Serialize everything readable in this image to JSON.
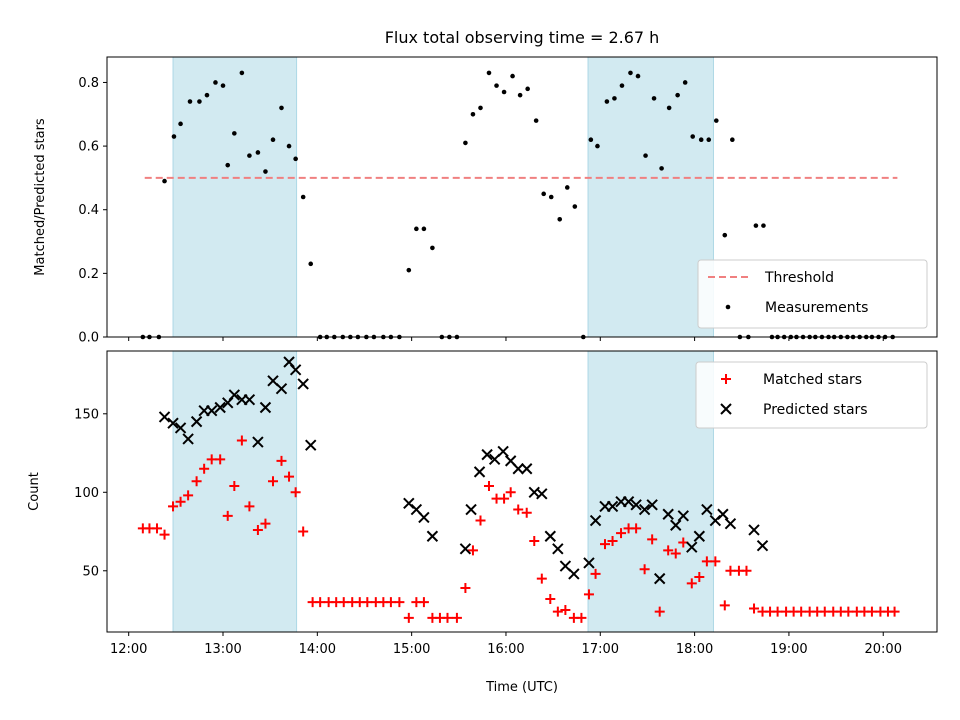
{
  "title": "Flux total observing time = 2.67 h",
  "xlabel": "Time (UTC)",
  "xticks": [
    "12:00",
    "13:00",
    "14:00",
    "15:00",
    "16:00",
    "17:00",
    "18:00",
    "19:00",
    "20:00"
  ],
  "colors": {
    "shade": "#add8e6",
    "threshold": "#f08080",
    "matched": "#ff0000",
    "predicted": "#000000",
    "measurement": "#000000"
  },
  "chart_data": [
    {
      "type": "scatter",
      "ylabel": "Matched/Predicted stars",
      "xlim": [
        11.77,
        20.57
      ],
      "ylim": [
        0,
        0.88
      ],
      "yticks": [
        0.0,
        0.2,
        0.4,
        0.6,
        0.8
      ],
      "shaded_regions": [
        [
          12.47,
          13.78
        ],
        [
          16.87,
          18.2
        ]
      ],
      "threshold": {
        "name": "Threshold",
        "value": 0.5,
        "x_range": [
          12.17,
          20.15
        ]
      },
      "legend_position": "lower-right",
      "series": [
        {
          "name": "Measurements",
          "points": [
            [
              12.15,
              0.0
            ],
            [
              12.22,
              0.0
            ],
            [
              12.32,
              0.0
            ],
            [
              12.38,
              0.49
            ],
            [
              12.48,
              0.63
            ],
            [
              12.55,
              0.67
            ],
            [
              12.65,
              0.74
            ],
            [
              12.75,
              0.74
            ],
            [
              12.83,
              0.76
            ],
            [
              12.92,
              0.8
            ],
            [
              13.0,
              0.79
            ],
            [
              13.05,
              0.54
            ],
            [
              13.12,
              0.64
            ],
            [
              13.2,
              0.83
            ],
            [
              13.28,
              0.57
            ],
            [
              13.37,
              0.58
            ],
            [
              13.45,
              0.52
            ],
            [
              13.53,
              0.62
            ],
            [
              13.62,
              0.72
            ],
            [
              13.7,
              0.6
            ],
            [
              13.77,
              0.56
            ],
            [
              13.85,
              0.44
            ],
            [
              13.93,
              0.23
            ],
            [
              14.03,
              0.0
            ],
            [
              14.1,
              0.0
            ],
            [
              14.18,
              0.0
            ],
            [
              14.27,
              0.0
            ],
            [
              14.35,
              0.0
            ],
            [
              14.43,
              0.0
            ],
            [
              14.52,
              0.0
            ],
            [
              14.6,
              0.0
            ],
            [
              14.7,
              0.0
            ],
            [
              14.78,
              0.0
            ],
            [
              14.87,
              0.0
            ],
            [
              14.97,
              0.21
            ],
            [
              15.05,
              0.34
            ],
            [
              15.13,
              0.34
            ],
            [
              15.22,
              0.28
            ],
            [
              15.32,
              0.0
            ],
            [
              15.4,
              0.0
            ],
            [
              15.48,
              0.0
            ],
            [
              15.57,
              0.61
            ],
            [
              15.65,
              0.7
            ],
            [
              15.73,
              0.72
            ],
            [
              15.82,
              0.83
            ],
            [
              15.9,
              0.79
            ],
            [
              15.98,
              0.77
            ],
            [
              16.07,
              0.82
            ],
            [
              16.15,
              0.76
            ],
            [
              16.23,
              0.78
            ],
            [
              16.32,
              0.68
            ],
            [
              16.4,
              0.45
            ],
            [
              16.48,
              0.44
            ],
            [
              16.57,
              0.37
            ],
            [
              16.65,
              0.47
            ],
            [
              16.73,
              0.41
            ],
            [
              16.82,
              0.0
            ],
            [
              16.9,
              0.62
            ],
            [
              16.97,
              0.6
            ],
            [
              17.07,
              0.74
            ],
            [
              17.15,
              0.75
            ],
            [
              17.23,
              0.79
            ],
            [
              17.32,
              0.83
            ],
            [
              17.4,
              0.82
            ],
            [
              17.48,
              0.57
            ],
            [
              17.57,
              0.75
            ],
            [
              17.65,
              0.53
            ],
            [
              17.73,
              0.72
            ],
            [
              17.82,
              0.76
            ],
            [
              17.9,
              0.8
            ],
            [
              17.98,
              0.63
            ],
            [
              18.07,
              0.62
            ],
            [
              18.15,
              0.62
            ],
            [
              18.23,
              0.68
            ],
            [
              18.32,
              0.32
            ],
            [
              18.4,
              0.62
            ],
            [
              18.48,
              0.0
            ],
            [
              18.57,
              0.0
            ],
            [
              18.65,
              0.35
            ],
            [
              18.73,
              0.35
            ],
            [
              18.82,
              0.0
            ],
            [
              18.88,
              0.0
            ],
            [
              18.95,
              0.0
            ],
            [
              19.02,
              0.0
            ],
            [
              19.08,
              0.0
            ],
            [
              19.15,
              0.0
            ],
            [
              19.22,
              0.0
            ],
            [
              19.28,
              0.0
            ],
            [
              19.35,
              0.0
            ],
            [
              19.42,
              0.0
            ],
            [
              19.48,
              0.0
            ],
            [
              19.55,
              0.0
            ],
            [
              19.62,
              0.0
            ],
            [
              19.68,
              0.0
            ],
            [
              19.75,
              0.0
            ],
            [
              19.82,
              0.0
            ],
            [
              19.88,
              0.0
            ],
            [
              19.95,
              0.0
            ],
            [
              20.02,
              0.0
            ],
            [
              20.1,
              0.0
            ]
          ]
        }
      ]
    },
    {
      "type": "scatter",
      "ylabel": "Count",
      "xlim": [
        11.77,
        20.57
      ],
      "ylim": [
        11,
        190
      ],
      "yticks": [
        50,
        100,
        150
      ],
      "shaded_regions": [
        [
          12.47,
          13.78
        ],
        [
          16.87,
          18.2
        ]
      ],
      "legend_position": "upper-right",
      "series": [
        {
          "name": "Matched stars",
          "marker": "plus",
          "points": [
            [
              12.15,
              77
            ],
            [
              12.22,
              77
            ],
            [
              12.3,
              77
            ],
            [
              12.38,
              73
            ],
            [
              12.47,
              91
            ],
            [
              12.55,
              94
            ],
            [
              12.63,
              98
            ],
            [
              12.72,
              107
            ],
            [
              12.8,
              115
            ],
            [
              12.88,
              121
            ],
            [
              12.97,
              121
            ],
            [
              13.05,
              85
            ],
            [
              13.12,
              104
            ],
            [
              13.2,
              133
            ],
            [
              13.28,
              91
            ],
            [
              13.37,
              76
            ],
            [
              13.45,
              80
            ],
            [
              13.53,
              107
            ],
            [
              13.62,
              120
            ],
            [
              13.7,
              110
            ],
            [
              13.77,
              100
            ],
            [
              13.85,
              75
            ],
            [
              13.95,
              30
            ],
            [
              14.03,
              30
            ],
            [
              14.12,
              30
            ],
            [
              14.2,
              30
            ],
            [
              14.28,
              30
            ],
            [
              14.37,
              30
            ],
            [
              14.45,
              30
            ],
            [
              14.53,
              30
            ],
            [
              14.62,
              30
            ],
            [
              14.7,
              30
            ],
            [
              14.78,
              30
            ],
            [
              14.87,
              30
            ],
            [
              14.97,
              20
            ],
            [
              15.05,
              30
            ],
            [
              15.13,
              30
            ],
            [
              15.22,
              20
            ],
            [
              15.3,
              20
            ],
            [
              15.38,
              20
            ],
            [
              15.48,
              20
            ],
            [
              15.57,
              39
            ],
            [
              15.65,
              63
            ],
            [
              15.73,
              82
            ],
            [
              15.82,
              104
            ],
            [
              15.9,
              96
            ],
            [
              15.98,
              96
            ],
            [
              16.05,
              100
            ],
            [
              16.13,
              89
            ],
            [
              16.22,
              87
            ],
            [
              16.3,
              69
            ],
            [
              16.38,
              45
            ],
            [
              16.47,
              32
            ],
            [
              16.55,
              24
            ],
            [
              16.63,
              25
            ],
            [
              16.72,
              20
            ],
            [
              16.8,
              20
            ],
            [
              16.88,
              35
            ],
            [
              16.95,
              48
            ],
            [
              17.05,
              67
            ],
            [
              17.13,
              69
            ],
            [
              17.22,
              74
            ],
            [
              17.3,
              77
            ],
            [
              17.38,
              77
            ],
            [
              17.47,
              51
            ],
            [
              17.55,
              70
            ],
            [
              17.63,
              24
            ],
            [
              17.72,
              63
            ],
            [
              17.8,
              61
            ],
            [
              17.88,
              68
            ],
            [
              17.97,
              42
            ],
            [
              18.05,
              46
            ],
            [
              18.13,
              56
            ],
            [
              18.22,
              56
            ],
            [
              18.32,
              28
            ],
            [
              18.38,
              50
            ],
            [
              18.47,
              50
            ],
            [
              18.55,
              50
            ],
            [
              18.63,
              26
            ],
            [
              18.72,
              24
            ],
            [
              18.8,
              24
            ],
            [
              18.88,
              24
            ],
            [
              18.97,
              24
            ],
            [
              19.05,
              24
            ],
            [
              19.13,
              24
            ],
            [
              19.22,
              24
            ],
            [
              19.3,
              24
            ],
            [
              19.38,
              24
            ],
            [
              19.47,
              24
            ],
            [
              19.55,
              24
            ],
            [
              19.63,
              24
            ],
            [
              19.72,
              24
            ],
            [
              19.8,
              24
            ],
            [
              19.88,
              24
            ],
            [
              19.97,
              24
            ],
            [
              20.05,
              24
            ],
            [
              20.12,
              24
            ]
          ]
        },
        {
          "name": "Predicted stars",
          "marker": "x",
          "points": [
            [
              12.38,
              148
            ],
            [
              12.47,
              144
            ],
            [
              12.55,
              141
            ],
            [
              12.63,
              134
            ],
            [
              12.72,
              145
            ],
            [
              12.8,
              152
            ],
            [
              12.88,
              152
            ],
            [
              12.97,
              154
            ],
            [
              13.05,
              157
            ],
            [
              13.12,
              162
            ],
            [
              13.2,
              159
            ],
            [
              13.28,
              159
            ],
            [
              13.37,
              132
            ],
            [
              13.45,
              154
            ],
            [
              13.53,
              171
            ],
            [
              13.62,
              166
            ],
            [
              13.7,
              183
            ],
            [
              13.77,
              178
            ],
            [
              13.85,
              169
            ],
            [
              13.93,
              130
            ],
            [
              14.97,
              93
            ],
            [
              15.05,
              89
            ],
            [
              15.13,
              84
            ],
            [
              15.22,
              72
            ],
            [
              15.57,
              64
            ],
            [
              15.63,
              89
            ],
            [
              15.72,
              113
            ],
            [
              15.8,
              124
            ],
            [
              15.88,
              121
            ],
            [
              15.97,
              126
            ],
            [
              16.05,
              120
            ],
            [
              16.13,
              115
            ],
            [
              16.22,
              115
            ],
            [
              16.3,
              100
            ],
            [
              16.38,
              99
            ],
            [
              16.47,
              72
            ],
            [
              16.55,
              64
            ],
            [
              16.63,
              53
            ],
            [
              16.72,
              48
            ],
            [
              16.88,
              55
            ],
            [
              16.95,
              82
            ],
            [
              17.05,
              91
            ],
            [
              17.13,
              91
            ],
            [
              17.22,
              94
            ],
            [
              17.3,
              94
            ],
            [
              17.38,
              92
            ],
            [
              17.47,
              89
            ],
            [
              17.55,
              92
            ],
            [
              17.63,
              45
            ],
            [
              17.72,
              86
            ],
            [
              17.8,
              79
            ],
            [
              17.88,
              85
            ],
            [
              17.97,
              65
            ],
            [
              18.05,
              72
            ],
            [
              18.13,
              89
            ],
            [
              18.22,
              82
            ],
            [
              18.3,
              86
            ],
            [
              18.38,
              80
            ],
            [
              18.63,
              76
            ],
            [
              18.72,
              66
            ]
          ]
        }
      ]
    }
  ]
}
